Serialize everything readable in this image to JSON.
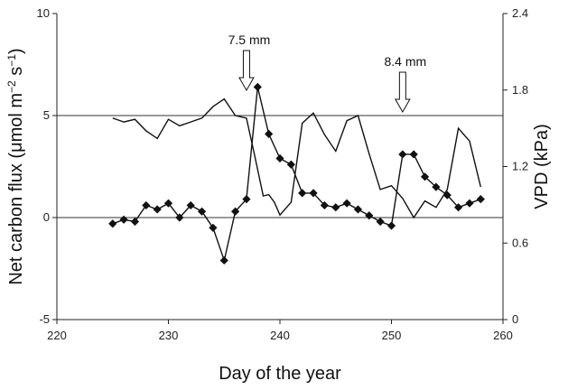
{
  "chart_data": {
    "type": "line",
    "title": "",
    "xlabel": "Day of the year",
    "ylabel_left_prefix": "Net carbon flux (μmol m",
    "ylabel_left_sup1": "−2",
    "ylabel_left_mid": " s",
    "ylabel_left_sup2": "−1",
    "ylabel_left_suffix": ")",
    "ylabel_right": "VPD (kPa)",
    "xlim": [
      220,
      260
    ],
    "ylim_left": [
      -5,
      10
    ],
    "ylim_right": [
      0,
      2.4
    ],
    "x_ticks": [
      "220",
      "230",
      "240",
      "250",
      "260"
    ],
    "y_left_ticks": [
      "-5",
      "0",
      "5",
      "10"
    ],
    "y_right_ticks": [
      "0",
      "0.6",
      "1.2",
      "1.8",
      "2.4"
    ],
    "reference_lines_left": [
      0,
      5
    ],
    "colors": {
      "lines": "#111111",
      "markers": "#111111",
      "background": "#ffffff"
    },
    "series": [
      {
        "axis": "left",
        "style": "line-with-diamond-markers",
        "x": [
          225,
          226,
          227,
          228,
          229,
          230,
          231,
          232,
          233,
          234,
          235,
          236,
          237,
          238,
          239,
          240,
          241,
          242,
          243,
          244,
          245,
          246,
          247,
          248,
          249,
          250,
          251,
          252,
          253,
          254,
          255,
          256,
          257,
          258
        ],
        "values": [
          -0.3,
          -0.1,
          -0.2,
          0.6,
          0.4,
          0.7,
          0.0,
          0.6,
          0.3,
          -0.5,
          -2.1,
          0.3,
          0.9,
          6.4,
          4.1,
          2.9,
          2.6,
          1.2,
          1.2,
          0.6,
          0.5,
          0.7,
          0.4,
          0.1,
          -0.2,
          -0.4,
          3.1,
          3.1,
          2.0,
          1.5,
          1.1,
          0.5,
          0.7,
          0.9
        ]
      },
      {
        "axis": "right",
        "style": "line",
        "x": [
          225,
          226,
          227,
          228,
          229,
          230,
          231,
          232,
          233,
          234,
          235,
          236,
          237,
          237.7,
          238.5,
          239,
          239.5,
          240,
          241,
          242,
          243,
          244,
          245,
          246,
          247,
          248,
          249,
          250,
          251,
          252,
          253,
          254,
          255,
          256,
          257,
          258
        ],
        "values": [
          1.58,
          1.55,
          1.57,
          1.48,
          1.42,
          1.57,
          1.52,
          1.55,
          1.58,
          1.67,
          1.73,
          1.6,
          1.58,
          1.3,
          0.97,
          0.98,
          0.92,
          0.82,
          0.92,
          1.54,
          1.62,
          1.45,
          1.32,
          1.56,
          1.6,
          1.3,
          1.02,
          1.05,
          0.95,
          0.8,
          0.93,
          0.88,
          1.02,
          1.5,
          1.4,
          1.04
        ]
      }
    ],
    "annotations": [
      {
        "text": "7.5 mm",
        "x": 237
      },
      {
        "text": "8.4 mm",
        "x": 251
      }
    ]
  }
}
